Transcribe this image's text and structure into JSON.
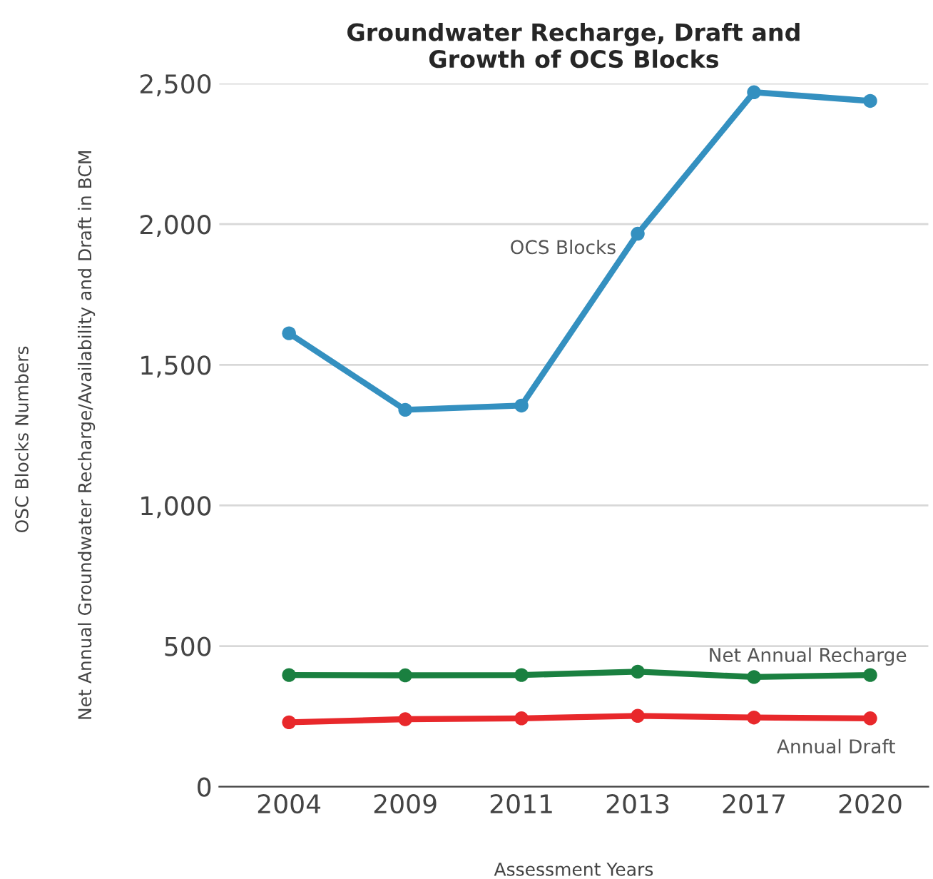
{
  "chart_data": {
    "type": "line",
    "title": "Groundwater Recharge, Draft and\nGrowth of OCS Blocks",
    "xlabel": "Assessment Years",
    "ylabel": "Net Annual Groundwater Recharge/Availability and Draft in BCM",
    "annotations": [
      "OSC Blocks Numbers"
    ],
    "categories": [
      "2004",
      "2009",
      "2011",
      "2013",
      "2017",
      "2020"
    ],
    "series": [
      {
        "name": "OCS Blocks",
        "color": "#3490c0",
        "values": [
          1612,
          1340,
          1355,
          1966,
          2469,
          2438
        ]
      },
      {
        "name": "Net Annual Recharge",
        "color": "#1a8040",
        "values": [
          397,
          396,
          397,
          409,
          390,
          397
        ]
      },
      {
        "name": "Annual Draft",
        "color": "#e8282b",
        "values": [
          229,
          240,
          243,
          252,
          246,
          243
        ]
      }
    ],
    "ylim": [
      0,
      2500
    ],
    "yticks": [
      {
        "value": 0,
        "label": "0"
      },
      {
        "value": 500,
        "label": "500"
      },
      {
        "value": 1000,
        "label": "1,000"
      },
      {
        "value": 1500,
        "label": "1,500"
      },
      {
        "value": 2000,
        "label": "2,000"
      },
      {
        "value": 2500,
        "label": "2,500"
      }
    ],
    "grid": "y",
    "marker": "circle",
    "line_style": "solid",
    "legend": false
  }
}
